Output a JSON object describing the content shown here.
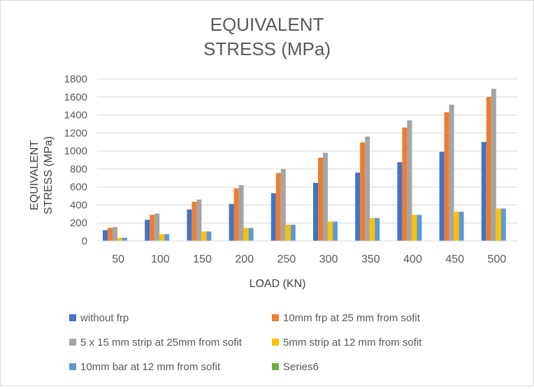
{
  "chart_data": {
    "type": "bar",
    "title_lines": [
      "EQUIVALENT",
      "STRESS (MPa)"
    ],
    "xlabel": "LOAD (KN)",
    "ylabel_lines": [
      "EQUIVALENT",
      "STRESS (MPa)"
    ],
    "categories": [
      "50",
      "100",
      "150",
      "200",
      "250",
      "300",
      "350",
      "400",
      "450",
      "500"
    ],
    "ylim": [
      0,
      1800
    ],
    "yticks": [
      "0",
      "200",
      "400",
      "600",
      "800",
      "1000",
      "1200",
      "1400",
      "1600",
      "1800"
    ],
    "grid": true,
    "legend_position": "bottom",
    "series": [
      {
        "name": "without frp",
        "color": "#4472c4",
        "values": [
          120,
          235,
          350,
          410,
          530,
          645,
          760,
          875,
          990,
          1100
        ]
      },
      {
        "name": "10mm frp at 25 mm from sofit",
        "color": "#ed7d31",
        "values": [
          145,
          290,
          435,
          585,
          755,
          925,
          1095,
          1260,
          1430,
          1600
        ]
      },
      {
        "name": "5 x 15 mm strip at 25mm from sofit",
        "color": "#a5a5a5",
        "values": [
          155,
          305,
          460,
          620,
          800,
          980,
          1160,
          1340,
          1515,
          1690
        ]
      },
      {
        "name": "5mm strip at 12 mm from sofit",
        "color": "#ffc000",
        "values": [
          35,
          75,
          105,
          145,
          180,
          215,
          255,
          290,
          325,
          360
        ]
      },
      {
        "name": "10mm bar at 12 mm from sofit",
        "color": "#5b9bd5",
        "values": [
          35,
          75,
          105,
          145,
          180,
          215,
          255,
          290,
          325,
          360
        ]
      },
      {
        "name": "Series6",
        "color": "#70ad47",
        "values": [
          0,
          0,
          0,
          0,
          0,
          0,
          0,
          0,
          0,
          0
        ]
      }
    ]
  }
}
